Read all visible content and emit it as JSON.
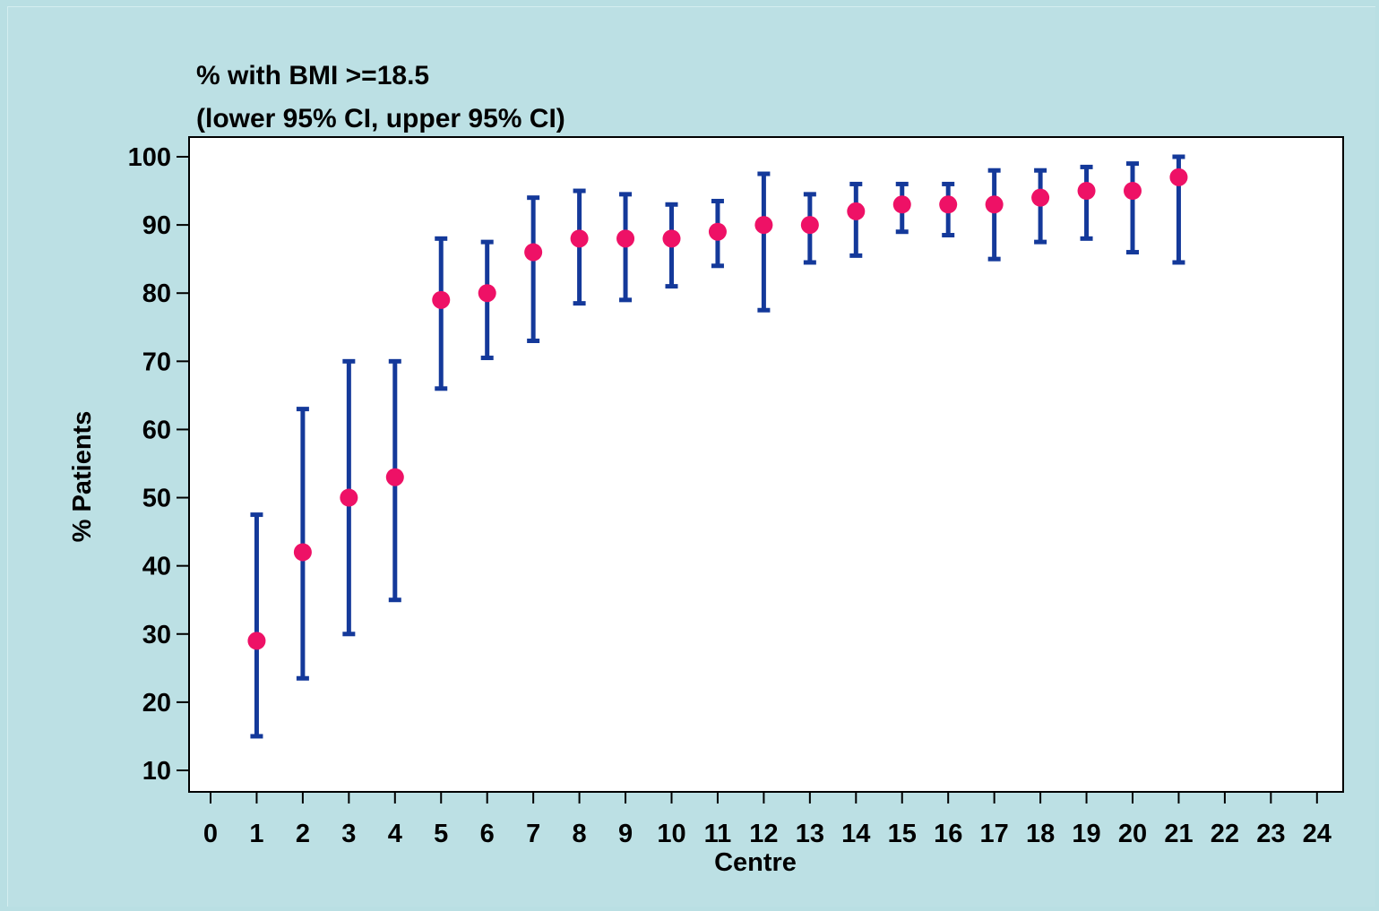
{
  "chart_data": {
    "type": "scatter",
    "title": "% with BMI >=18.5",
    "subtitle": "(lower 95% CI, upper 95% CI)",
    "xlabel": "Centre",
    "ylabel": "% Patients",
    "xlim": [
      0,
      24
    ],
    "ylim": [
      10,
      100
    ],
    "xticks": [
      0,
      1,
      2,
      3,
      4,
      5,
      6,
      7,
      8,
      9,
      10,
      11,
      12,
      13,
      14,
      15,
      16,
      17,
      18,
      19,
      20,
      21,
      22,
      23,
      24
    ],
    "yticks": [
      10,
      20,
      30,
      40,
      50,
      60,
      70,
      80,
      90,
      100
    ],
    "grid": false,
    "legend": "none",
    "colors": {
      "point": "#ee1166",
      "errorbar": "#14399a"
    },
    "points": [
      {
        "x": 1,
        "y": 29,
        "lower": 15,
        "upper": 47.5
      },
      {
        "x": 2,
        "y": 42,
        "lower": 23.5,
        "upper": 63
      },
      {
        "x": 3,
        "y": 50,
        "lower": 30,
        "upper": 70
      },
      {
        "x": 4,
        "y": 53,
        "lower": 35,
        "upper": 70
      },
      {
        "x": 5,
        "y": 79,
        "lower": 66,
        "upper": 88
      },
      {
        "x": 6,
        "y": 80,
        "lower": 70.5,
        "upper": 87.5
      },
      {
        "x": 7,
        "y": 86,
        "lower": 73,
        "upper": 94
      },
      {
        "x": 8,
        "y": 88,
        "lower": 78.5,
        "upper": 95
      },
      {
        "x": 9,
        "y": 88,
        "lower": 79,
        "upper": 94.5
      },
      {
        "x": 10,
        "y": 88,
        "lower": 81,
        "upper": 93
      },
      {
        "x": 11,
        "y": 89,
        "lower": 84,
        "upper": 93.5
      },
      {
        "x": 12,
        "y": 90,
        "lower": 77.5,
        "upper": 97.5
      },
      {
        "x": 13,
        "y": 90,
        "lower": 84.5,
        "upper": 94.5
      },
      {
        "x": 14,
        "y": 92,
        "lower": 85.5,
        "upper": 96
      },
      {
        "x": 15,
        "y": 93,
        "lower": 89,
        "upper": 96
      },
      {
        "x": 16,
        "y": 93,
        "lower": 88.5,
        "upper": 96
      },
      {
        "x": 17,
        "y": 93,
        "lower": 85,
        "upper": 98
      },
      {
        "x": 18,
        "y": 94,
        "lower": 87.5,
        "upper": 98
      },
      {
        "x": 19,
        "y": 95,
        "lower": 88,
        "upper": 98.5
      },
      {
        "x": 20,
        "y": 95,
        "lower": 86,
        "upper": 99
      },
      {
        "x": 21,
        "y": 97,
        "lower": 84.5,
        "upper": 100
      }
    ]
  }
}
